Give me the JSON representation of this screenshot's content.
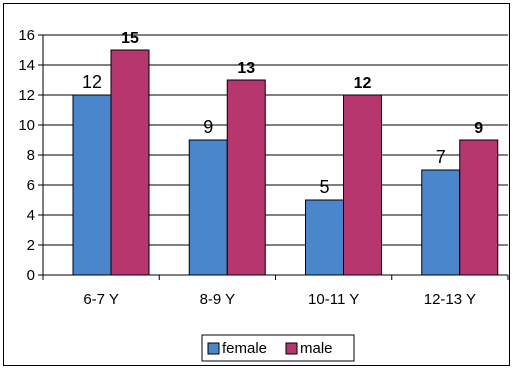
{
  "chart_data": {
    "type": "bar",
    "categories": [
      "6-7 Y",
      "8-9 Y",
      "10-11 Y",
      "12-13 Y"
    ],
    "series": [
      {
        "name": "female",
        "values": [
          12,
          9,
          5,
          7
        ],
        "color": "#4a86cc",
        "label_weight": "normal"
      },
      {
        "name": "male",
        "values": [
          15,
          13,
          12,
          9
        ],
        "color": "#b7366e",
        "label_weight": "bold"
      }
    ],
    "ylim": [
      0,
      16
    ],
    "yticks": [
      0,
      2,
      4,
      6,
      8,
      10,
      12,
      14,
      16
    ],
    "grid": true,
    "legend": "bottom",
    "title": "",
    "xlabel": "",
    "ylabel": ""
  }
}
